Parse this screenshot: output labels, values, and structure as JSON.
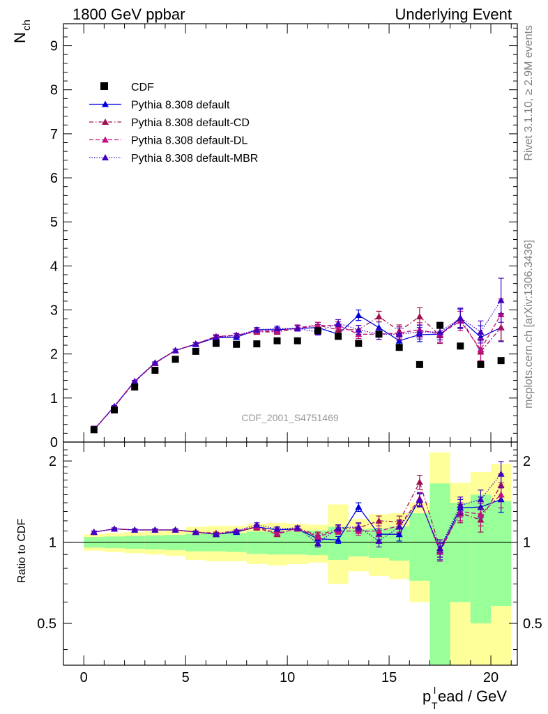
{
  "header": {
    "left_title": "1800 GeV ppbar",
    "right_title": "Underlying Event"
  },
  "side_labels": {
    "rivet": "Rivet 3.1.10, ≥ 2.9M events",
    "mcplots": "mcplots.cern.ch [arXiv:1306.3436]"
  },
  "analysis_label": "CDF_2001_S4751469",
  "chart_data": [
    {
      "type": "scatter",
      "ylabel": "N",
      "ylabel_sub": "ch",
      "xlim": [
        -1,
        21.3
      ],
      "ylim": [
        0,
        9.5
      ],
      "yticks": [
        0,
        1,
        2,
        3,
        4,
        5,
        6,
        7,
        8,
        9
      ],
      "x": [
        0.5,
        1.5,
        2.5,
        3.5,
        4.5,
        5.5,
        6.5,
        7.5,
        8.5,
        9.5,
        10.5,
        11.5,
        12.5,
        13.5,
        14.5,
        15.5,
        16.5,
        17.5,
        18.5,
        19.5,
        20.5
      ],
      "legend_position": "top-left",
      "series": [
        {
          "name": "CDF",
          "style": "data",
          "color": "#000000",
          "values": [
            0.28,
            0.73,
            1.25,
            1.63,
            1.88,
            2.06,
            2.24,
            2.22,
            2.23,
            2.3,
            2.3,
            2.53,
            2.4,
            2.24,
            2.45,
            2.15,
            1.76,
            2.65,
            2.18,
            1.76,
            1.85
          ]
        },
        {
          "name": "Pythia 8.308 default",
          "style": "solid",
          "color": "#0000dd",
          "values": [
            0.28,
            0.81,
            1.38,
            1.8,
            2.08,
            2.22,
            2.37,
            2.38,
            2.55,
            2.55,
            2.58,
            2.6,
            2.45,
            2.88,
            2.6,
            2.3,
            2.44,
            2.45,
            2.8,
            2.38,
            2.6
          ],
          "errors": [
            0.01,
            0.02,
            0.02,
            0.02,
            0.03,
            0.03,
            0.04,
            0.04,
            0.05,
            0.05,
            0.06,
            0.07,
            0.08,
            0.12,
            0.13,
            0.14,
            0.16,
            0.18,
            0.22,
            0.26,
            0.32
          ]
        },
        {
          "name": "Pythia 8.308 default-CD",
          "style": "dashdot",
          "color": "#a01050",
          "values": [
            0.28,
            0.8,
            1.37,
            1.79,
            2.08,
            2.23,
            2.39,
            2.43,
            2.5,
            2.5,
            2.58,
            2.65,
            2.55,
            2.55,
            2.85,
            2.52,
            2.85,
            2.42,
            2.82,
            2.05,
            2.6
          ],
          "errors": [
            0.01,
            0.02,
            0.02,
            0.02,
            0.03,
            0.03,
            0.04,
            0.04,
            0.05,
            0.05,
            0.06,
            0.07,
            0.08,
            0.1,
            0.12,
            0.14,
            0.2,
            0.18,
            0.22,
            0.25,
            0.3
          ]
        },
        {
          "name": "Pythia 8.308 default-DL",
          "style": "dashed",
          "color": "#c01080",
          "values": [
            0.28,
            0.81,
            1.38,
            1.79,
            2.08,
            2.23,
            2.4,
            2.42,
            2.52,
            2.52,
            2.6,
            2.65,
            2.65,
            2.45,
            2.45,
            2.48,
            2.55,
            2.45,
            2.75,
            2.1,
            2.9
          ],
          "errors": [
            0.01,
            0.02,
            0.02,
            0.02,
            0.03,
            0.03,
            0.04,
            0.04,
            0.05,
            0.05,
            0.06,
            0.07,
            0.08,
            0.1,
            0.12,
            0.14,
            0.16,
            0.18,
            0.22,
            0.25,
            0.35
          ]
        },
        {
          "name": "Pythia 8.308 default-MBR",
          "style": "dotted",
          "color": "#4000c0",
          "values": [
            0.28,
            0.81,
            1.38,
            1.8,
            2.08,
            2.23,
            2.38,
            2.42,
            2.55,
            2.58,
            2.58,
            2.5,
            2.7,
            2.55,
            2.45,
            2.45,
            2.5,
            2.5,
            2.82,
            2.5,
            3.22
          ],
          "errors": [
            0.01,
            0.02,
            0.02,
            0.02,
            0.03,
            0.03,
            0.04,
            0.04,
            0.05,
            0.05,
            0.06,
            0.07,
            0.08,
            0.1,
            0.12,
            0.14,
            0.16,
            0.18,
            0.22,
            0.25,
            0.5
          ]
        }
      ]
    },
    {
      "type": "scatter",
      "ylabel": "Ratio to CDF",
      "xlabel_main": "p",
      "xlabel_sub": "T",
      "xlabel_sup": "l",
      "xlabel_rest": "ead / GeV",
      "xlim": [
        -1,
        21.3
      ],
      "ylim": [
        0.35,
        2.35
      ],
      "yticks": [
        0.5,
        1,
        2
      ],
      "xticks": [
        0,
        5,
        10,
        15,
        20
      ],
      "x": [
        0.5,
        1.5,
        2.5,
        3.5,
        4.5,
        5.5,
        6.5,
        7.5,
        8.5,
        9.5,
        10.5,
        11.5,
        12.5,
        13.5,
        14.5,
        15.5,
        16.5,
        17.5,
        18.5,
        19.5,
        20.5
      ],
      "band_1sigma": [
        [
          0.955,
          1.045
        ],
        [
          0.95,
          1.05
        ],
        [
          0.945,
          1.055
        ],
        [
          0.94,
          1.06
        ],
        [
          0.935,
          1.065
        ],
        [
          0.925,
          1.075
        ],
        [
          0.925,
          1.075
        ],
        [
          0.92,
          1.08
        ],
        [
          0.905,
          1.095
        ],
        [
          0.9,
          1.1
        ],
        [
          0.9,
          1.1
        ],
        [
          0.895,
          1.105
        ],
        [
          0.86,
          1.14
        ],
        [
          0.885,
          1.115
        ],
        [
          0.875,
          1.125
        ],
        [
          0.855,
          1.145
        ],
        [
          0.72,
          1.28
        ],
        [
          0.35,
          1.65
        ],
        [
          0.6,
          1.4
        ],
        [
          0.5,
          1.5
        ],
        [
          0.58,
          1.42
        ]
      ],
      "band_2sigma": [
        [
          0.93,
          1.07
        ],
        [
          0.92,
          1.08
        ],
        [
          0.91,
          1.09
        ],
        [
          0.9,
          1.1
        ],
        [
          0.89,
          1.11
        ],
        [
          0.86,
          1.14
        ],
        [
          0.85,
          1.15
        ],
        [
          0.85,
          1.15
        ],
        [
          0.83,
          1.17
        ],
        [
          0.82,
          1.18
        ],
        [
          0.83,
          1.17
        ],
        [
          0.84,
          1.16
        ],
        [
          0.7,
          1.38
        ],
        [
          0.78,
          1.22
        ],
        [
          0.75,
          1.27
        ],
        [
          0.73,
          1.28
        ],
        [
          0.6,
          1.4
        ],
        [
          0.35,
          2.15
        ],
        [
          0.35,
          1.66
        ],
        [
          0.35,
          1.82
        ],
        [
          0.35,
          1.95
        ]
      ],
      "series": [
        {
          "name": "Pythia 8.308 default",
          "style": "solid",
          "color": "#0000dd",
          "values": [
            1.09,
            1.12,
            1.11,
            1.11,
            1.11,
            1.09,
            1.07,
            1.09,
            1.14,
            1.11,
            1.12,
            1.03,
            1.02,
            1.35,
            1.07,
            1.07,
            1.44,
            0.93,
            1.34,
            1.35,
            1.44
          ],
          "errors": [
            0.01,
            0.01,
            0.01,
            0.01,
            0.01,
            0.01,
            0.01,
            0.01,
            0.02,
            0.02,
            0.02,
            0.03,
            0.03,
            0.05,
            0.05,
            0.06,
            0.08,
            0.07,
            0.1,
            0.12,
            0.15
          ]
        },
        {
          "name": "Pythia 8.308 default-CD",
          "style": "dashdot",
          "color": "#a01050",
          "values": [
            1.09,
            1.12,
            1.11,
            1.11,
            1.11,
            1.09,
            1.08,
            1.1,
            1.13,
            1.07,
            1.13,
            1.06,
            1.12,
            1.13,
            1.2,
            1.19,
            1.67,
            0.95,
            1.28,
            1.21,
            1.63
          ],
          "errors": [
            0.01,
            0.01,
            0.01,
            0.01,
            0.01,
            0.01,
            0.01,
            0.01,
            0.02,
            0.02,
            0.02,
            0.03,
            0.03,
            0.04,
            0.05,
            0.06,
            0.1,
            0.07,
            0.1,
            0.12,
            0.16
          ]
        },
        {
          "name": "Pythia 8.308 default-DL",
          "style": "dashed",
          "color": "#c01080",
          "values": [
            1.09,
            1.12,
            1.11,
            1.11,
            1.11,
            1.09,
            1.07,
            1.1,
            1.14,
            1.08,
            1.12,
            1.05,
            1.1,
            1.1,
            1.1,
            1.15,
            1.45,
            0.92,
            1.3,
            1.27,
            1.5
          ],
          "errors": [
            0.01,
            0.01,
            0.01,
            0.01,
            0.01,
            0.01,
            0.01,
            0.01,
            0.02,
            0.02,
            0.02,
            0.03,
            0.03,
            0.04,
            0.05,
            0.06,
            0.08,
            0.07,
            0.1,
            0.12,
            0.16
          ]
        },
        {
          "name": "Pythia 8.308 default-MBR",
          "style": "dotted",
          "color": "#4000c0",
          "values": [
            1.09,
            1.12,
            1.11,
            1.11,
            1.11,
            1.09,
            1.07,
            1.1,
            1.16,
            1.12,
            1.13,
            0.99,
            1.13,
            1.14,
            1.01,
            1.14,
            1.43,
            0.95,
            1.37,
            1.44,
            1.79
          ],
          "errors": [
            0.01,
            0.01,
            0.01,
            0.01,
            0.01,
            0.01,
            0.01,
            0.01,
            0.02,
            0.02,
            0.02,
            0.03,
            0.03,
            0.04,
            0.05,
            0.06,
            0.08,
            0.07,
            0.1,
            0.12,
            0.2
          ]
        }
      ]
    }
  ]
}
